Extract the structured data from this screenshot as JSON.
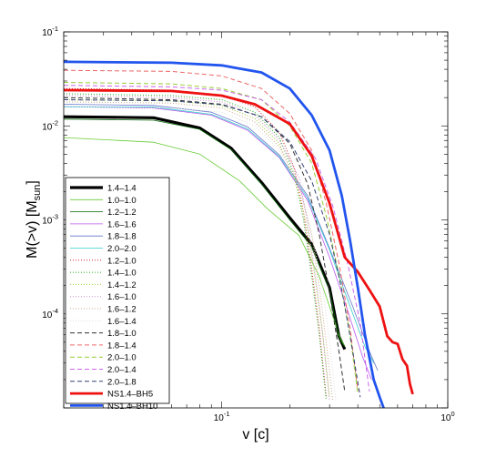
{
  "chart_data": {
    "type": "line",
    "title": "",
    "xlabel": "v [c]",
    "ylabel_main": "M(>v) [M",
    "ylabel_sub": "sun",
    "ylabel_close": "]",
    "x_scale": "log",
    "y_scale": "log",
    "xlim": [
      0.02,
      1.0
    ],
    "ylim": [
      1e-05,
      0.1
    ],
    "grid": false,
    "legend_position": "bottom-left",
    "x_ticks": [
      {
        "value": 0.1,
        "base": "10",
        "exp": "-1"
      },
      {
        "value": 1.0,
        "base": "10",
        "exp": "0"
      }
    ],
    "y_ticks": [
      {
        "value": 0.1,
        "base": "10",
        "exp": "-1"
      },
      {
        "value": 0.01,
        "base": "10",
        "exp": "-2"
      },
      {
        "value": 0.001,
        "base": "10",
        "exp": "-3"
      },
      {
        "value": 0.0001,
        "base": "10",
        "exp": "-4"
      }
    ],
    "series": [
      {
        "name": "1.4–1.4",
        "color": "#000000",
        "width": 3.2,
        "dash": "solid",
        "points": [
          [
            0.02,
            0.0125
          ],
          [
            0.05,
            0.0122
          ],
          [
            0.08,
            0.0095
          ],
          [
            0.11,
            0.0058
          ],
          [
            0.15,
            0.0025
          ],
          [
            0.2,
            0.00105
          ],
          [
            0.25,
            0.00055
          ],
          [
            0.3,
            0.00019
          ],
          [
            0.33,
            5.8e-05
          ],
          [
            0.35,
            4.2e-05
          ]
        ]
      },
      {
        "name": "1.0–1.0",
        "color": "#66cc33",
        "width": 0.8,
        "dash": "solid",
        "points": [
          [
            0.02,
            0.0075
          ],
          [
            0.05,
            0.0067
          ],
          [
            0.08,
            0.005
          ],
          [
            0.12,
            0.0026
          ],
          [
            0.16,
            0.0013
          ],
          [
            0.22,
            0.00068
          ],
          [
            0.27,
            0.00025
          ],
          [
            0.3,
            0.00012
          ],
          [
            0.33,
            6e-05
          ],
          [
            0.35,
            4.5e-05
          ]
        ]
      },
      {
        "name": "1.2–1.2",
        "color": "#006400",
        "width": 0.8,
        "dash": "solid",
        "points": [
          [
            0.02,
            0.0118
          ],
          [
            0.05,
            0.0115
          ],
          [
            0.08,
            0.0092
          ],
          [
            0.11,
            0.0056
          ],
          [
            0.15,
            0.0024
          ],
          [
            0.2,
            0.001
          ],
          [
            0.25,
            0.00052
          ],
          [
            0.3,
            0.00018
          ],
          [
            0.33,
            5.5e-05
          ],
          [
            0.35,
            4.5e-05
          ]
        ]
      },
      {
        "name": "1.6–1.6",
        "color": "#bb55ee",
        "width": 0.8,
        "dash": "solid",
        "points": [
          [
            0.02,
            0.016
          ],
          [
            0.05,
            0.0155
          ],
          [
            0.09,
            0.013
          ],
          [
            0.13,
            0.009
          ],
          [
            0.18,
            0.0046
          ],
          [
            0.24,
            0.0016
          ],
          [
            0.3,
            0.0004
          ],
          [
            0.36,
            0.00011
          ],
          [
            0.42,
            3.5e-05
          ],
          [
            0.46,
            2e-05
          ]
        ]
      },
      {
        "name": "1.8–1.8",
        "color": "#6677cc",
        "width": 0.8,
        "dash": "solid",
        "points": [
          [
            0.02,
            0.017
          ],
          [
            0.05,
            0.0165
          ],
          [
            0.09,
            0.014
          ],
          [
            0.13,
            0.0098
          ],
          [
            0.18,
            0.0049
          ],
          [
            0.24,
            0.0018
          ],
          [
            0.3,
            0.0005
          ],
          [
            0.38,
            0.00012
          ],
          [
            0.45,
            4e-05
          ],
          [
            0.49,
            2.5e-05
          ]
        ]
      },
      {
        "name": "2.0–2.0",
        "color": "#33cccc",
        "width": 0.8,
        "dash": "solid",
        "points": [
          [
            0.02,
            0.016
          ],
          [
            0.05,
            0.0158
          ],
          [
            0.09,
            0.0133
          ],
          [
            0.13,
            0.0093
          ],
          [
            0.18,
            0.0047
          ],
          [
            0.24,
            0.0017
          ],
          [
            0.3,
            0.00048
          ],
          [
            0.37,
            0.00012
          ],
          [
            0.43,
            4.5e-05
          ],
          [
            0.47,
            3e-05
          ]
        ]
      },
      {
        "name": "1.2–1.0",
        "color": "#cc2222",
        "width": 1.0,
        "dash": "1,2",
        "points": [
          [
            0.02,
            0.025
          ],
          [
            0.06,
            0.024
          ],
          [
            0.1,
            0.021
          ],
          [
            0.14,
            0.016
          ],
          [
            0.18,
            0.0085
          ],
          [
            0.21,
            0.0035
          ],
          [
            0.23,
            0.0012
          ],
          [
            0.25,
            0.0003
          ],
          [
            0.27,
            7e-05
          ],
          [
            0.29,
            1.3e-05
          ]
        ]
      },
      {
        "name": "1.4–1.0",
        "color": "#22aa22",
        "width": 1.0,
        "dash": "1,2",
        "points": [
          [
            0.02,
            0.022
          ],
          [
            0.06,
            0.021
          ],
          [
            0.1,
            0.019
          ],
          [
            0.14,
            0.014
          ],
          [
            0.18,
            0.0075
          ],
          [
            0.21,
            0.003
          ],
          [
            0.23,
            0.001
          ],
          [
            0.25,
            0.00025
          ],
          [
            0.27,
            6e-05
          ],
          [
            0.29,
            1.2e-05
          ]
        ]
      },
      {
        "name": "1.4–1.2",
        "color": "#99cc33",
        "width": 1.0,
        "dash": "1,2",
        "points": [
          [
            0.02,
            0.019
          ],
          [
            0.06,
            0.0185
          ],
          [
            0.1,
            0.0165
          ],
          [
            0.14,
            0.012
          ],
          [
            0.18,
            0.0065
          ],
          [
            0.21,
            0.0027
          ],
          [
            0.24,
            0.0008
          ],
          [
            0.26,
            0.00022
          ],
          [
            0.28,
            6e-05
          ],
          [
            0.3,
            1.3e-05
          ]
        ]
      },
      {
        "name": "1.6–1.0",
        "color": "#cc88cc",
        "width": 1.0,
        "dash": "1,2",
        "points": [
          [
            0.02,
            0.021
          ],
          [
            0.06,
            0.02
          ],
          [
            0.1,
            0.018
          ],
          [
            0.14,
            0.013
          ],
          [
            0.18,
            0.007
          ],
          [
            0.22,
            0.0028
          ],
          [
            0.24,
            0.0009
          ],
          [
            0.26,
            0.00025
          ],
          [
            0.28,
            6e-05
          ],
          [
            0.3,
            1.2e-05
          ]
        ]
      },
      {
        "name": "1.6–1.2",
        "color": "#ccaa88",
        "width": 1.0,
        "dash": "1,2",
        "points": [
          [
            0.02,
            0.018
          ],
          [
            0.06,
            0.0175
          ],
          [
            0.1,
            0.0155
          ],
          [
            0.14,
            0.011
          ],
          [
            0.18,
            0.006
          ],
          [
            0.22,
            0.0024
          ],
          [
            0.25,
            0.0007
          ],
          [
            0.27,
            0.0002
          ],
          [
            0.29,
            5e-05
          ],
          [
            0.31,
            1.2e-05
          ]
        ]
      },
      {
        "name": "1.6–1.4",
        "color": "#dddddd",
        "width": 1.0,
        "dash": "1,2",
        "points": [
          [
            0.02,
            0.016
          ],
          [
            0.06,
            0.0155
          ],
          [
            0.1,
            0.014
          ],
          [
            0.14,
            0.01
          ],
          [
            0.18,
            0.0055
          ],
          [
            0.22,
            0.0022
          ],
          [
            0.25,
            0.0007
          ],
          [
            0.28,
            0.00019
          ],
          [
            0.3,
            5e-05
          ],
          [
            0.32,
            1.2e-05
          ]
        ]
      },
      {
        "name": "1.8–1.0",
        "color": "#333333",
        "width": 1.0,
        "dash": "5,3",
        "points": [
          [
            0.02,
            0.02
          ],
          [
            0.06,
            0.019
          ],
          [
            0.1,
            0.017
          ],
          [
            0.15,
            0.0125
          ],
          [
            0.2,
            0.0065
          ],
          [
            0.24,
            0.0024
          ],
          [
            0.27,
            0.0007
          ],
          [
            0.3,
            0.00017
          ],
          [
            0.33,
            4e-05
          ],
          [
            0.35,
            1.5e-05
          ]
        ]
      },
      {
        "name": "1.8–1.4",
        "color": "#ee6666",
        "width": 1.0,
        "dash": "5,3",
        "points": [
          [
            0.02,
            0.039
          ],
          [
            0.06,
            0.038
          ],
          [
            0.1,
            0.034
          ],
          [
            0.15,
            0.025
          ],
          [
            0.2,
            0.0135
          ],
          [
            0.25,
            0.0055
          ],
          [
            0.29,
            0.0015
          ],
          [
            0.33,
            0.00035
          ],
          [
            0.37,
            7e-05
          ],
          [
            0.4,
            1.5e-05
          ]
        ]
      },
      {
        "name": "2.0–1.0",
        "color": "#99cc33",
        "width": 1.0,
        "dash": "5,3",
        "points": [
          [
            0.02,
            0.029
          ],
          [
            0.06,
            0.028
          ],
          [
            0.1,
            0.025
          ],
          [
            0.15,
            0.019
          ],
          [
            0.2,
            0.01
          ],
          [
            0.25,
            0.004
          ],
          [
            0.29,
            0.0011
          ],
          [
            0.33,
            0.00026
          ],
          [
            0.37,
            6e-05
          ],
          [
            0.4,
            1.4e-05
          ]
        ]
      },
      {
        "name": "2.0–1.4",
        "color": "#cc66ee",
        "width": 1.0,
        "dash": "5,3",
        "points": [
          [
            0.02,
            0.027
          ],
          [
            0.06,
            0.026
          ],
          [
            0.1,
            0.024
          ],
          [
            0.15,
            0.019
          ],
          [
            0.2,
            0.011
          ],
          [
            0.26,
            0.0045
          ],
          [
            0.31,
            0.0014
          ],
          [
            0.36,
            0.00035
          ],
          [
            0.41,
            8e-05
          ],
          [
            0.45,
            1.5e-05
          ]
        ]
      },
      {
        "name": "2.0–1.8",
        "color": "#334477",
        "width": 1.0,
        "dash": "5,3",
        "points": [
          [
            0.02,
            0.019
          ],
          [
            0.06,
            0.0185
          ],
          [
            0.1,
            0.0168
          ],
          [
            0.15,
            0.0125
          ],
          [
            0.2,
            0.0068
          ],
          [
            0.25,
            0.0026
          ],
          [
            0.3,
            0.0007
          ],
          [
            0.34,
            0.00018
          ],
          [
            0.38,
            4e-05
          ],
          [
            0.41,
            1.3e-05
          ]
        ]
      },
      {
        "name": "NS1.4–BH5",
        "color": "#ee1111",
        "width": 2.8,
        "dash": "solid",
        "points": [
          [
            0.02,
            0.024
          ],
          [
            0.06,
            0.0235
          ],
          [
            0.1,
            0.021
          ],
          [
            0.14,
            0.017
          ],
          [
            0.2,
            0.0105
          ],
          [
            0.25,
            0.0048
          ],
          [
            0.3,
            0.0015
          ],
          [
            0.35,
            0.0004
          ],
          [
            0.4,
            0.00028
          ],
          [
            0.45,
            0.00018
          ],
          [
            0.5,
            0.00012
          ],
          [
            0.54,
            5.8e-05
          ],
          [
            0.57,
            5e-05
          ],
          [
            0.6,
            4.8e-05
          ],
          [
            0.63,
            3.3e-05
          ],
          [
            0.66,
            2.8e-05
          ],
          [
            0.68,
            1.8e-05
          ],
          [
            0.7,
            1.4e-05
          ]
        ]
      },
      {
        "name": "NS1.4–BH10",
        "color": "#2255ee",
        "width": 2.8,
        "dash": "solid",
        "points": [
          [
            0.02,
            0.048
          ],
          [
            0.06,
            0.047
          ],
          [
            0.1,
            0.044
          ],
          [
            0.15,
            0.037
          ],
          [
            0.2,
            0.025
          ],
          [
            0.25,
            0.013
          ],
          [
            0.3,
            0.0055
          ],
          [
            0.34,
            0.0018
          ],
          [
            0.37,
            0.0006
          ],
          [
            0.4,
            0.00019
          ],
          [
            0.43,
            6e-05
          ],
          [
            0.47,
            2e-05
          ],
          [
            0.5,
            1.3e-05
          ],
          [
            0.52,
            1e-05
          ]
        ]
      }
    ]
  }
}
